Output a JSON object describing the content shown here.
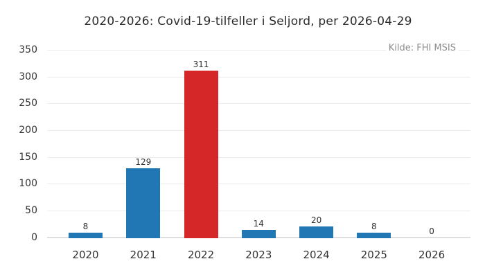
{
  "chart_data": {
    "type": "bar",
    "title": "2020-2026: Covid-19-tilfeller i Seljord, per 2026-04-29",
    "source": "Kilde: FHI MSIS",
    "categories": [
      "2020",
      "2021",
      "2022",
      "2023",
      "2024",
      "2025",
      "2026"
    ],
    "values": [
      8,
      129,
      311,
      14,
      20,
      8,
      0
    ],
    "value_labels": [
      "8",
      "129",
      "311",
      "14",
      "20",
      "8",
      "0"
    ],
    "bar_colors": [
      "#2077b4",
      "#2077b4",
      "#d62728",
      "#2077b4",
      "#2077b4",
      "#2077b4",
      "#2077b4"
    ],
    "y_ticks": [
      0,
      50,
      100,
      150,
      200,
      250,
      300,
      350
    ],
    "ylim": [
      0,
      350
    ],
    "xlabel": "",
    "ylabel": "",
    "grid": true,
    "legend": "none",
    "colors": {
      "bar_default": "#2077b4",
      "bar_highlight": "#d62728",
      "gridline": "#ececec",
      "baseline": "#dedede",
      "text": "#333333",
      "muted_text": "#8c8c8c",
      "background": "#ffffff"
    }
  }
}
